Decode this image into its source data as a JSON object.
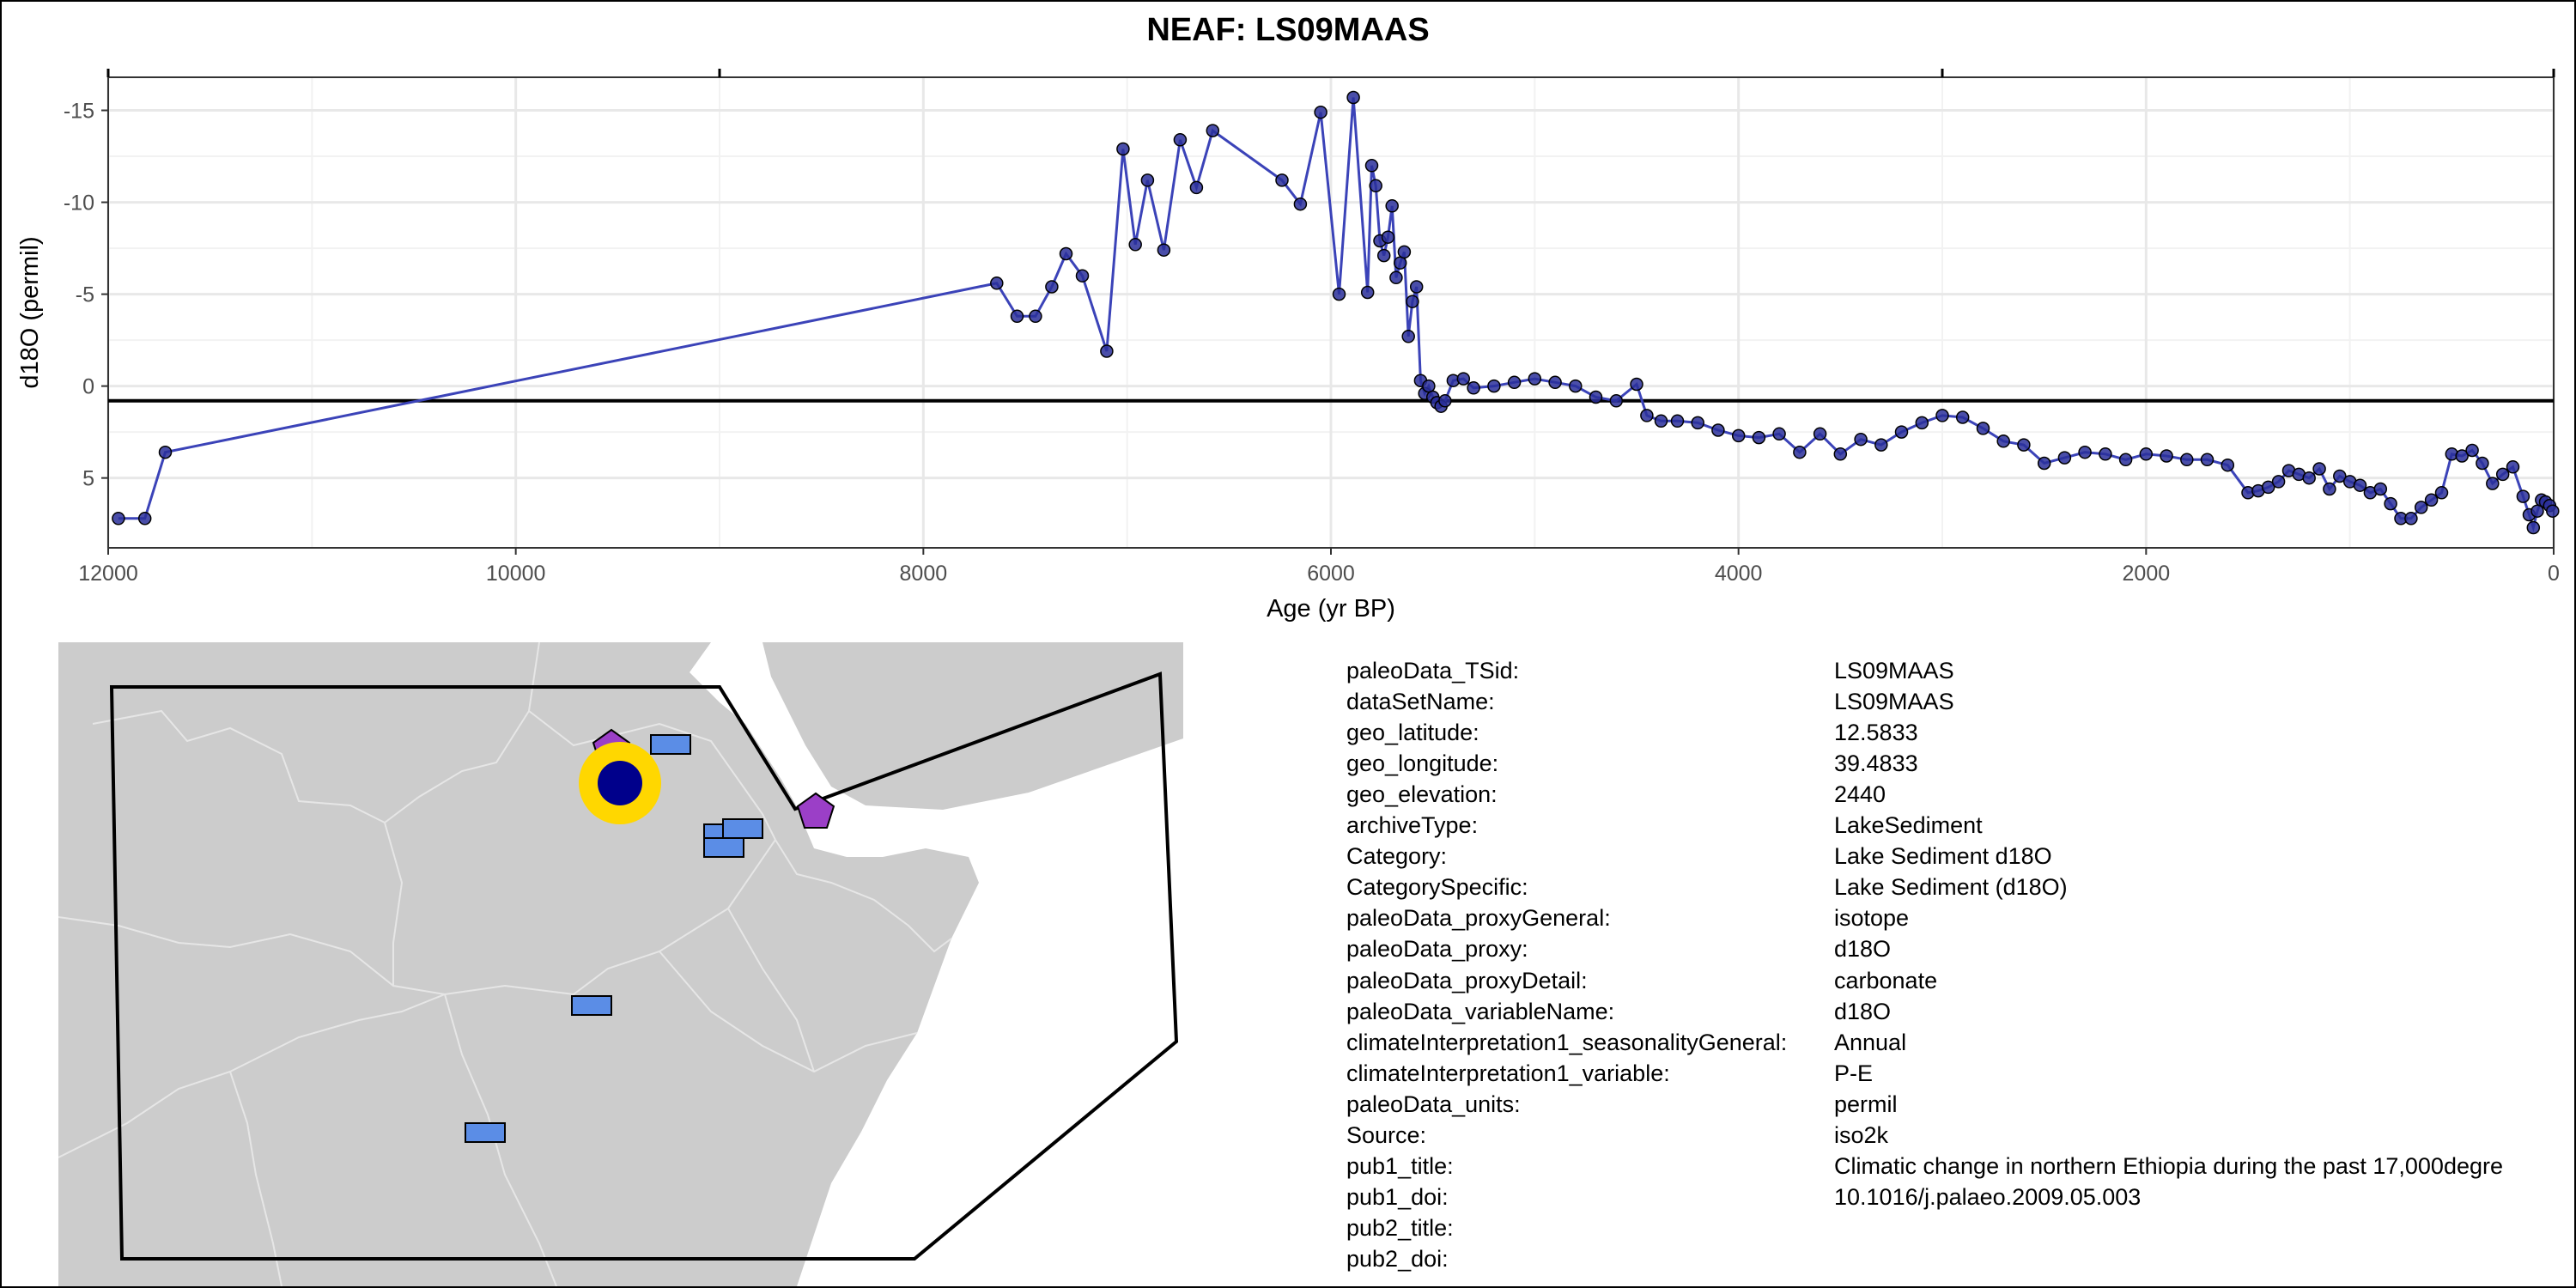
{
  "chart_data": {
    "type": "line",
    "title": "NEAF: LS09MAAS",
    "xlabel": "Age (yr BP)",
    "ylabel": "d18O (permil)",
    "xlim": [
      12000,
      0
    ],
    "ylim": [
      -16.8,
      8.8
    ],
    "y_reversed": true,
    "x_reversed": true,
    "xticks": [
      12000,
      10000,
      8000,
      6000,
      4000,
      2000,
      0
    ],
    "yticks": [
      -15,
      -10,
      -5,
      0,
      5
    ],
    "ytick_labels": [
      "-15",
      "-10",
      "-5",
      "0",
      "5"
    ],
    "top_ticks": [
      12000,
      9000,
      3000,
      0
    ],
    "reference_line_y": 0.8,
    "grid": true,
    "colors": {
      "line": "#3b43b8",
      "point": "#2a2f9a",
      "point_edge": "#000000",
      "reference": "#000000"
    },
    "series": [
      {
        "x": [
          11950,
          11820,
          11720,
          7640,
          7540,
          7450,
          7370,
          7300,
          7220,
          7100,
          7020,
          6960,
          6900,
          6820,
          6740,
          6660,
          6580,
          6240,
          6150,
          6050,
          5960,
          5890,
          5820,
          5800,
          5780,
          5760,
          5740,
          5720,
          5700,
          5680,
          5660,
          5640,
          5620,
          5600,
          5580,
          5560,
          5540,
          5520,
          5500,
          5480,
          5460,
          5440,
          5400,
          5350,
          5300,
          5200,
          5100,
          5000,
          4900,
          4800,
          4700,
          4600,
          4500,
          4450,
          4380,
          4300,
          4200,
          4100,
          4000,
          3900,
          3800,
          3700,
          3600,
          3500,
          3400,
          3300,
          3200,
          3100,
          3000,
          2900,
          2800,
          2700,
          2600,
          2500,
          2400,
          2300,
          2200,
          2100,
          2000,
          1900,
          1800,
          1700,
          1600,
          1500,
          1450,
          1400,
          1350,
          1300,
          1250,
          1200,
          1150,
          1100,
          1050,
          1000,
          950,
          900,
          850,
          800,
          750,
          700,
          650,
          600,
          550,
          500,
          450,
          400,
          350,
          300,
          250,
          200,
          150,
          120,
          100,
          80,
          60,
          40,
          20,
          5
        ],
        "y": [
          7.2,
          7.2,
          3.6,
          -5.6,
          -3.8,
          -3.8,
          -5.4,
          -7.2,
          -6.0,
          -1.9,
          -12.9,
          -7.7,
          -11.2,
          -7.4,
          -13.4,
          -10.8,
          -13.9,
          -11.2,
          -9.9,
          -14.9,
          -5.0,
          -15.7,
          -5.1,
          -12.0,
          -10.9,
          -7.9,
          -7.1,
          -8.1,
          -9.8,
          -5.9,
          -6.7,
          -7.3,
          -2.7,
          -4.6,
          -5.4,
          -0.3,
          0.4,
          0.0,
          0.6,
          0.9,
          1.1,
          0.8,
          -0.3,
          -0.4,
          0.1,
          0.0,
          -0.2,
          -0.4,
          -0.2,
          0.0,
          0.6,
          0.8,
          -0.1,
          1.6,
          1.9,
          1.9,
          2.0,
          2.4,
          2.7,
          2.8,
          2.6,
          3.6,
          2.6,
          3.7,
          2.9,
          3.2,
          2.5,
          2.0,
          1.6,
          1.7,
          2.3,
          3.0,
          3.2,
          4.2,
          3.9,
          3.6,
          3.7,
          4.0,
          3.7,
          3.8,
          4.0,
          4.0,
          4.3,
          5.8,
          5.7,
          5.5,
          5.2,
          4.6,
          4.8,
          5.0,
          4.5,
          5.6,
          4.9,
          5.2,
          5.4,
          5.8,
          5.6,
          6.4,
          7.2,
          7.2,
          6.6,
          6.2,
          5.8,
          3.7,
          3.8,
          3.5,
          4.2,
          5.3,
          4.8,
          4.4,
          6.0,
          7.0,
          7.7,
          6.8,
          6.2,
          6.3,
          6.5,
          6.8
        ]
      }
    ]
  },
  "map": {
    "colors": {
      "land": "#cccccc",
      "water": "#ffffff",
      "border": "#e6e6e6",
      "region_outline": "#000000",
      "site_ring": "#ffd700",
      "site_core": "#00008b",
      "pentagon": "#9b3fc7",
      "rect": "#5b8de6"
    },
    "site_marker": {
      "lat": 12.5833,
      "lon": 39.4833
    }
  },
  "metadata": {
    "rows": [
      {
        "key": "paleoData_TSid:",
        "value": "LS09MAAS"
      },
      {
        "key": "dataSetName:",
        "value": "LS09MAAS"
      },
      {
        "key": "geo_latitude:",
        "value": "12.5833"
      },
      {
        "key": "geo_longitude:",
        "value": "39.4833"
      },
      {
        "key": "geo_elevation:",
        "value": "2440"
      },
      {
        "key": "archiveType:",
        "value": "LakeSediment"
      },
      {
        "key": "Category:",
        "value": "Lake Sediment d18O"
      },
      {
        "key": "CategorySpecific:",
        "value": "Lake Sediment (d18O)"
      },
      {
        "key": "paleoData_proxyGeneral:",
        "value": "isotope"
      },
      {
        "key": "paleoData_proxy:",
        "value": "d18O"
      },
      {
        "key": "paleoData_proxyDetail:",
        "value": "carbonate"
      },
      {
        "key": "paleoData_variableName:",
        "value": "d18O"
      },
      {
        "key": "climateInterpretation1_seasonalityGeneral:",
        "value": "Annual"
      },
      {
        "key": "climateInterpretation1_variable:",
        "value": "P-E"
      },
      {
        "key": "paleoData_units:",
        "value": "permil"
      },
      {
        "key": "Source:",
        "value": "iso2k"
      },
      {
        "key": "pub1_title:",
        "value": "Climatic change in northern Ethiopia during the past 17,000degre"
      },
      {
        "key": "pub1_doi:",
        "value": "10.1016/j.palaeo.2009.05.003"
      },
      {
        "key": "pub2_title:",
        "value": ""
      },
      {
        "key": "pub2_doi:",
        "value": ""
      }
    ]
  }
}
